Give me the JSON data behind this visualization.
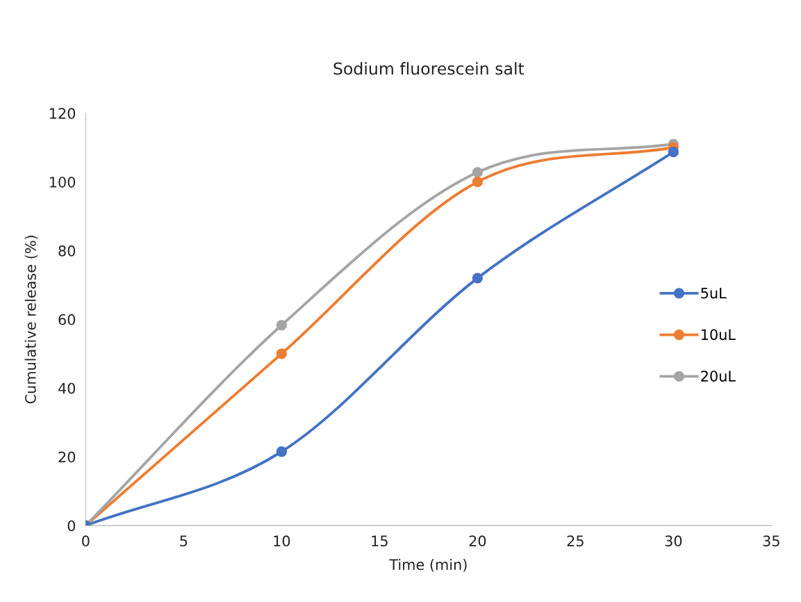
{
  "chart_data": {
    "type": "line",
    "title": "Sodium fluorescein salt",
    "xlabel": "Time (min)",
    "ylabel": "Cumulative release (%)",
    "x": [
      0,
      10,
      20,
      30
    ],
    "series": [
      {
        "name": "5uL",
        "color": "#4472c4",
        "values": [
          0,
          21.5,
          72,
          108.7
        ]
      },
      {
        "name": "10uL",
        "color": "#ed7d31",
        "values": [
          0,
          50,
          100,
          110
        ]
      },
      {
        "name": "20uL",
        "color": "#a5a5a5",
        "values": [
          0,
          58.3,
          102.8,
          111
        ]
      }
    ],
    "xlim": [
      0,
      35
    ],
    "xticks": [
      0,
      5,
      10,
      15,
      20,
      25,
      30,
      35
    ],
    "ylim": [
      0,
      120
    ],
    "yticks": [
      0,
      20,
      40,
      60,
      80,
      100,
      120
    ],
    "grid": false,
    "legend": "right",
    "marker": "circle",
    "line_style": "solid"
  }
}
